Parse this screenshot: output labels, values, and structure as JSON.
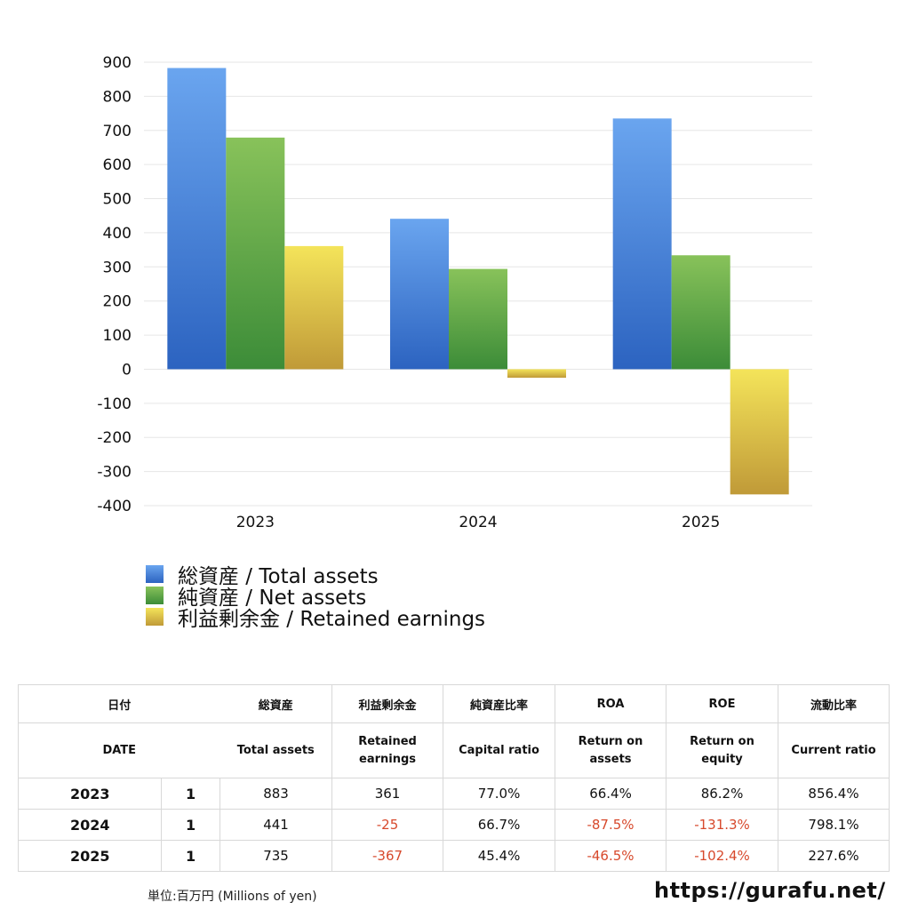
{
  "chart_data": {
    "type": "bar",
    "categories": [
      "2023",
      "2024",
      "2025"
    ],
    "series": [
      {
        "name": "総資産 / Total assets",
        "values": [
          883,
          441,
          735
        ]
      },
      {
        "name": "純資産 / Net assets",
        "values": [
          679,
          294,
          334
        ]
      },
      {
        "name": "利益剰余金 / Retained earnings",
        "values": [
          361,
          -25,
          -367
        ]
      }
    ],
    "yticks": [
      900,
      800,
      700,
      600,
      500,
      400,
      300,
      200,
      100,
      0,
      -100,
      -200,
      -300,
      -400
    ],
    "ylim": [
      -400,
      900
    ],
    "legend_position": "bottom-left",
    "colors": {
      "total_top": "#6aa5ef",
      "total_bottom": "#2c63c0",
      "net_top": "#88c25a",
      "net_bottom": "#3c8c38",
      "retained_top": "#f4e45a",
      "retained_bottom": "#c09a38"
    }
  },
  "legend": {
    "total": "総資産 / Total assets",
    "net": "純資産 / Net assets",
    "retained": "利益剰余金 / Retained earnings"
  },
  "table": {
    "header_jp": [
      "日付",
      "総資産",
      "利益剰余金",
      "純資産比率",
      "ROA",
      "ROE",
      "流動比率"
    ],
    "header_en": {
      "date": "DATE",
      "total_assets": "Total assets",
      "retained_1": "Retained",
      "retained_2": "earnings",
      "capital_ratio": "Capital ratio",
      "roa_1": "Return on",
      "roa_2": "assets",
      "roe_1": "Return on",
      "roe_2": "equity",
      "current_ratio": "Current ratio"
    },
    "rows": [
      {
        "year": "2023",
        "month": "1",
        "total": "883",
        "retained": "361",
        "capital": "77.0%",
        "roa": "66.4%",
        "roe": "86.2%",
        "current": "856.4%"
      },
      {
        "year": "2024",
        "month": "1",
        "total": "441",
        "retained": "-25",
        "capital": "66.7%",
        "roa": "-87.5%",
        "roe": "-131.3%",
        "current": "798.1%"
      },
      {
        "year": "2025",
        "month": "1",
        "total": "735",
        "retained": "-367",
        "capital": "45.4%",
        "roa": "-46.5%",
        "roe": "-102.4%",
        "current": "227.6%"
      }
    ]
  },
  "footer": {
    "unit": "単位:百万円 (Millions of yen)",
    "url": "https://gurafu.net/"
  }
}
